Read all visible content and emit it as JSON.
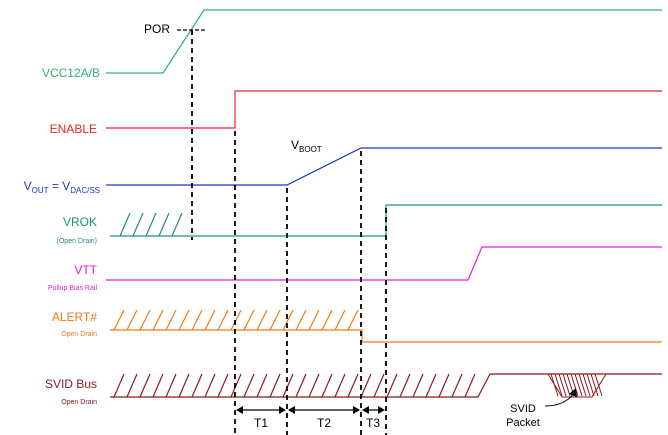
{
  "colors": {
    "vcc": "#2fb36b",
    "enable": "#e4262b",
    "vout": "#2233cc",
    "vrok": "#1f8f80",
    "vtt": "#e020e0",
    "alert": "#f07a1a",
    "svid": "#8b1a1a",
    "marker": "#000000"
  },
  "signals": {
    "vcc": {
      "label": "VCC12A/B"
    },
    "enable": {
      "label": "ENABLE"
    },
    "vout": {
      "label_v": "V",
      "label_out": "OUT",
      "label_eq": " = V",
      "label_dac": "DAC/SS"
    },
    "vrok": {
      "label": "VROK",
      "sub": "(Open Drain)"
    },
    "vtt": {
      "label": "VTT",
      "sub": "Pullup Bias Rail"
    },
    "alert": {
      "label": "ALERT#",
      "sub": "Open Drain"
    },
    "svid": {
      "label": "SVID Bus",
      "sub": "Open Drain"
    }
  },
  "annotations": {
    "por": "POR",
    "vboot_v": "V",
    "vboot_sub": "BOOT",
    "svid_packet_line1": "SVID",
    "svid_packet_line2": "Packet"
  },
  "intervals": [
    "T1",
    "T2",
    "T3"
  ]
}
